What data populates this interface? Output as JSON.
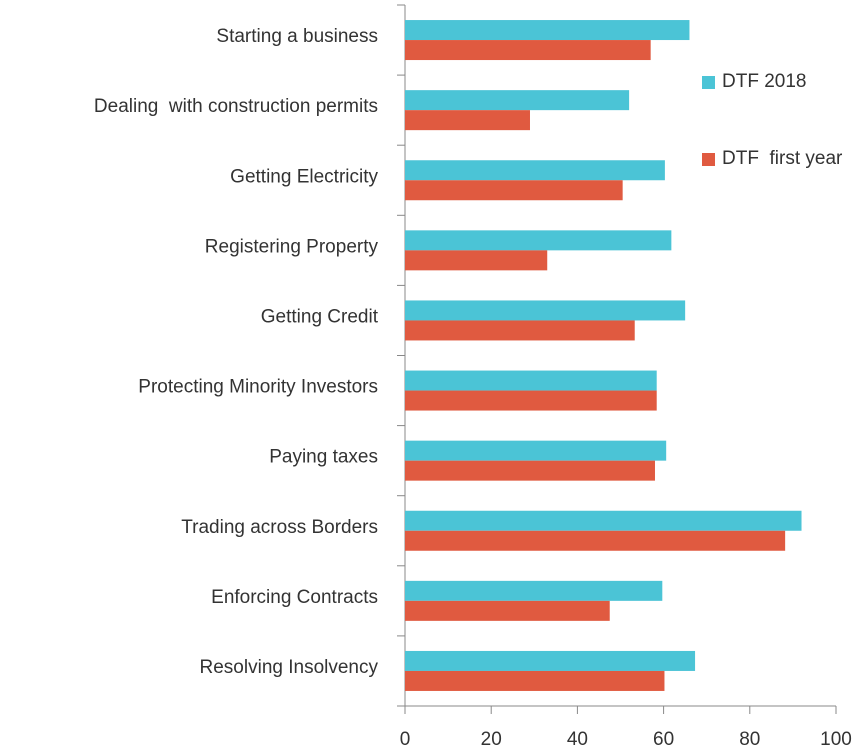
{
  "chart_data": {
    "type": "bar",
    "orientation": "horizontal",
    "categories": [
      "Starting a business",
      "Dealing  with construction permits",
      "Getting Electricity",
      "Registering Property",
      "Getting Credit",
      "Protecting Minority Investors",
      "Paying taxes",
      "Trading across Borders",
      "Enforcing Contracts",
      "Resolving Insolvency"
    ],
    "series": [
      {
        "name": "DTF 2018",
        "color": "#4bc4d6",
        "values": [
          66,
          52,
          60.3,
          61.8,
          65,
          58.4,
          60.6,
          92,
          59.7,
          67.3
        ]
      },
      {
        "name": "DTF  first year",
        "color": "#e05a40",
        "values": [
          57,
          29,
          50.5,
          33,
          53.3,
          58.4,
          58,
          88.2,
          47.5,
          60.2
        ]
      }
    ],
    "xlim": [
      0,
      100
    ],
    "xticks": [
      0,
      20,
      40,
      60,
      80,
      100
    ],
    "grid": false,
    "legend": "right"
  }
}
